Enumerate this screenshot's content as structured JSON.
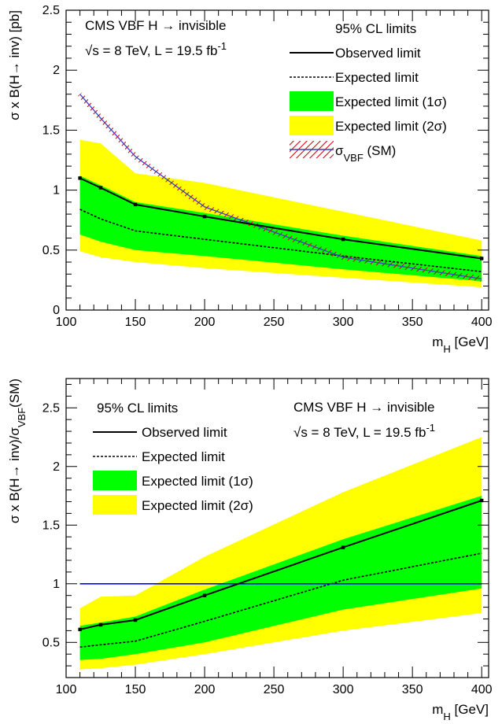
{
  "chart_data": [
    {
      "type": "line",
      "x": [
        110,
        125,
        150,
        200,
        300,
        400
      ],
      "series": [
        {
          "name": "Observed limit",
          "values": [
            1.1,
            1.02,
            0.88,
            0.78,
            0.59,
            0.43
          ]
        },
        {
          "name": "Expected limit",
          "values": [
            0.84,
            0.76,
            0.66,
            0.59,
            0.45,
            0.32
          ]
        },
        {
          "name": "Expected limit (1σ)",
          "lower": [
            0.63,
            0.57,
            0.5,
            0.45,
            0.34,
            0.24
          ],
          "upper": [
            1.12,
            1.04,
            0.9,
            0.81,
            0.62,
            0.45
          ]
        },
        {
          "name": "Expected limit (2σ)",
          "lower": [
            0.49,
            0.44,
            0.4,
            0.35,
            0.27,
            0.19
          ],
          "upper": [
            1.42,
            1.39,
            1.14,
            1.06,
            0.82,
            0.58
          ]
        },
        {
          "name": "σVBF (SM)",
          "x": [
            110,
            125,
            150,
            200,
            300,
            400
          ],
          "values": [
            1.8,
            1.6,
            1.28,
            0.86,
            0.44,
            0.26
          ]
        }
      ],
      "xlim": [
        100,
        405
      ],
      "ylim": [
        0,
        2.5
      ],
      "xticks": [
        100,
        150,
        200,
        250,
        300,
        350,
        400
      ],
      "yticks": [
        0,
        0.5,
        1,
        1.5,
        2,
        2.5
      ],
      "xlabel": "m_H [GeV]",
      "ylabel": "σ x B(H→ inv) [pb]",
      "annotation_line1": "CMS VBF H → invisible",
      "annotation_line2": "√s = 8 TeV, L = 19.5 fb⁻¹",
      "legend_title": "95% CL limits",
      "legend": [
        "Observed limit",
        "Expected limit",
        "Expected limit (1σ)",
        "Expected limit (2σ)",
        "σVBF (SM)"
      ],
      "legend_placement": "top-right",
      "colors": {
        "observed": "#000000",
        "expected": "#000000",
        "band1": "#00ff00",
        "band2": "#ffff00",
        "theory": "#3344cc",
        "theory_hatch": "#cc0000"
      }
    },
    {
      "type": "line",
      "x": [
        110,
        125,
        150,
        200,
        300,
        400
      ],
      "series": [
        {
          "name": "Observed limit",
          "values": [
            0.61,
            0.65,
            0.69,
            0.9,
            1.31,
            1.71
          ]
        },
        {
          "name": "Expected limit",
          "values": [
            0.46,
            0.48,
            0.51,
            0.68,
            1.03,
            1.26
          ]
        },
        {
          "name": "Expected limit (1σ)",
          "lower": [
            0.35,
            0.36,
            0.4,
            0.5,
            0.78,
            0.96
          ],
          "upper": [
            0.64,
            0.67,
            0.72,
            0.95,
            1.38,
            1.75
          ]
        },
        {
          "name": "Expected limit (2σ)",
          "lower": [
            0.27,
            0.28,
            0.31,
            0.4,
            0.6,
            0.75
          ],
          "upper": [
            0.79,
            0.89,
            0.9,
            1.23,
            1.78,
            2.25
          ]
        },
        {
          "name": "SM",
          "values": [
            1,
            1,
            1,
            1,
            1,
            1
          ]
        }
      ],
      "xlim": [
        100,
        405
      ],
      "ylim": [
        0.2,
        2.75
      ],
      "xticks": [
        100,
        150,
        200,
        250,
        300,
        350,
        400
      ],
      "yticks": [
        0.5,
        1,
        1.5,
        2,
        2.5
      ],
      "xlabel": "m_H [GeV]",
      "ylabel": "σ x B(H→ inv)/σVBF(SM)",
      "annotation_line1": "CMS VBF H → invisible",
      "annotation_line2": "√s = 8 TeV, L = 19.5 fb⁻¹",
      "legend_title": "95% CL limits",
      "legend": [
        "Observed limit",
        "Expected limit",
        "Expected limit (1σ)",
        "Expected limit (2σ)"
      ],
      "legend_placement": "top-left",
      "colors": {
        "observed": "#000000",
        "expected": "#000000",
        "band1": "#00ff00",
        "band2": "#ffff00",
        "sm_line": "#0000ff"
      }
    }
  ]
}
